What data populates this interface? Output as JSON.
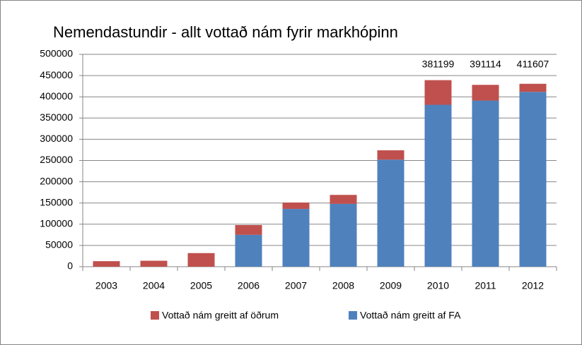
{
  "chart_data": {
    "type": "stacked_bar",
    "title": "Nemendastundir - allt vottað nám fyrir markhópinn",
    "categories": [
      "2003",
      "2004",
      "2005",
      "2006",
      "2007",
      "2008",
      "2009",
      "2010",
      "2011",
      "2012"
    ],
    "series": [
      {
        "name": "Vottað nám greitt af FA",
        "color": "#4f81bd",
        "values": [
          0,
          0,
          0,
          75000,
          136000,
          148000,
          252000,
          381199,
          391114,
          411607
        ],
        "value_labels": [
          null,
          null,
          null,
          null,
          null,
          null,
          null,
          "381199",
          "391114",
          "411607"
        ]
      },
      {
        "name": "Vottað nám greitt af öðrum",
        "color": "#c0504d",
        "values": [
          13000,
          14000,
          32000,
          23000,
          15000,
          21000,
          22000,
          58000,
          37000,
          19000
        ]
      }
    ],
    "legend_order": [
      1,
      0
    ],
    "ylim": [
      0,
      500000
    ],
    "yticks": [
      0,
      50000,
      100000,
      150000,
      200000,
      250000,
      300000,
      350000,
      400000,
      450000,
      500000
    ],
    "grid": true
  }
}
